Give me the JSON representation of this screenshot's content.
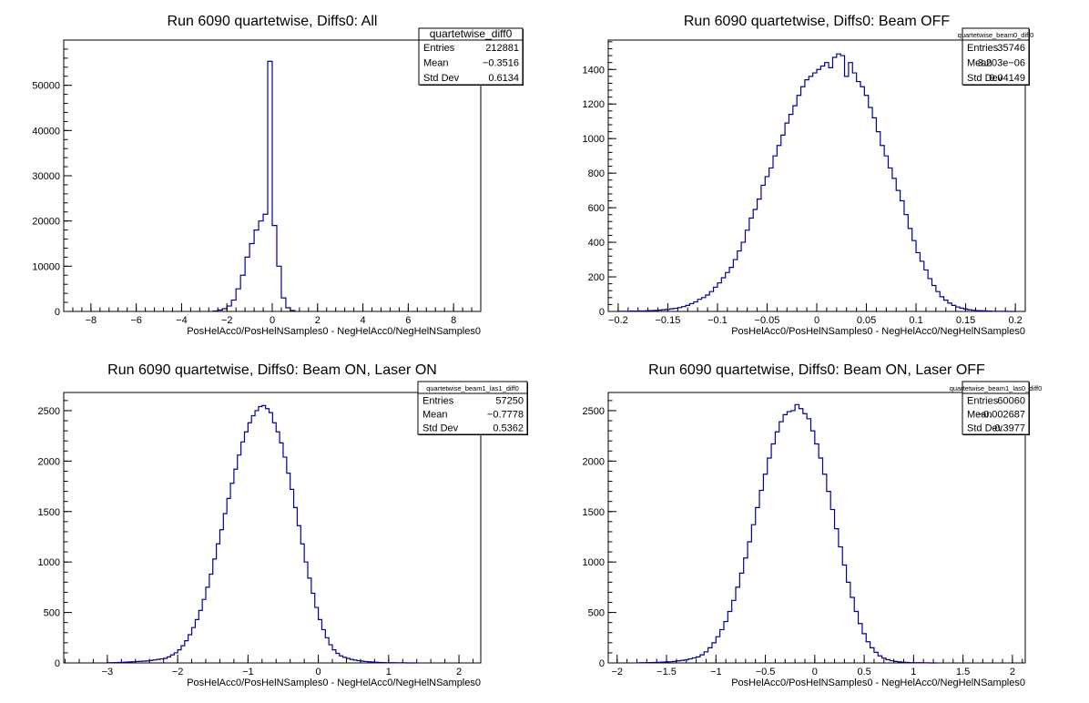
{
  "chart_data": [
    {
      "type": "bar",
      "title": "Run 6090 quartetwise, Diffs0: All",
      "xlabel": "PosHelAcc0/PosHelNSamples0 - NegHelAcc0/NegHelNSamples0",
      "ylabel": "",
      "xlim": [
        -9.2,
        9.2
      ],
      "ylim": [
        0,
        60000
      ],
      "xticks": [
        -8,
        -6,
        -4,
        -2,
        0,
        2,
        4,
        6,
        8
      ],
      "yticks": [
        0,
        10000,
        20000,
        30000,
        40000,
        50000
      ],
      "x_tick_labels": [
        "−8",
        "−6",
        "−4",
        "−2",
        "0",
        "2",
        "4",
        "6",
        "8"
      ],
      "y_tick_labels": [
        "0",
        "10000",
        "20000",
        "30000",
        "40000",
        "50000"
      ],
      "bins": {
        "start": -2.6,
        "width": 0.2
      },
      "values": [
        100,
        300,
        600,
        1200,
        2500,
        5000,
        8000,
        12000,
        15000,
        18000,
        20000,
        21500,
        55300,
        19000,
        10000,
        3000,
        800,
        200
      ],
      "stats": {
        "name": "quartetwise_diff0",
        "rows": [
          {
            "label": "Entries",
            "value": "212881"
          },
          {
            "label": "Mean",
            "value": "−0.3516"
          },
          {
            "label": "Std Dev",
            "value": "0.6134"
          }
        ]
      }
    },
    {
      "type": "bar",
      "title": "Run 6090 quartetwise, Diffs0: Beam OFF",
      "xlabel": "PosHelAcc0/PosHelNSamples0 - NegHelAcc0/NegHelNSamples0",
      "ylabel": "",
      "xlim": [
        -0.21,
        0.21
      ],
      "ylim": [
        0,
        1570
      ],
      "xticks": [
        -0.2,
        -0.15,
        -0.1,
        -0.05,
        0,
        0.05,
        0.1,
        0.15,
        0.2
      ],
      "yticks": [
        0,
        200,
        400,
        600,
        800,
        1000,
        1200,
        1400
      ],
      "x_tick_labels": [
        "−0.2",
        "−0.15",
        "−0.1",
        "−0.05",
        "0",
        "0.05",
        "0.1",
        "0.15",
        "0.2"
      ],
      "y_tick_labels": [
        "0",
        "200",
        "400",
        "600",
        "800",
        "1000",
        "1200",
        "1400"
      ],
      "bins": {
        "start": -0.2,
        "width": 0.004
      },
      "values": [
        1,
        1,
        1,
        2,
        2,
        3,
        3,
        4,
        5,
        6,
        8,
        10,
        12,
        15,
        18,
        22,
        28,
        35,
        45,
        55,
        70,
        80,
        95,
        115,
        140,
        165,
        195,
        225,
        255,
        300,
        350,
        400,
        470,
        540,
        590,
        650,
        730,
        780,
        830,
        900,
        960,
        1020,
        1090,
        1140,
        1190,
        1250,
        1300,
        1340,
        1360,
        1380,
        1400,
        1420,
        1440,
        1410,
        1470,
        1490,
        1480,
        1360,
        1440,
        1380,
        1330,
        1300,
        1250,
        1180,
        1120,
        1040,
        960,
        900,
        830,
        770,
        700,
        640,
        560,
        480,
        410,
        340,
        290,
        240,
        190,
        150,
        115,
        85,
        65,
        48,
        35,
        26,
        19,
        14,
        10,
        7,
        5,
        4,
        3,
        2,
        1,
        1,
        1,
        1,
        0,
        0
      ],
      "stats": {
        "name": "quartetwise_beam0_diff0",
        "rows": [
          {
            "label": "Entries",
            "value": "35746"
          },
          {
            "label": "Mean",
            "value": "3.203e−06"
          },
          {
            "label": "Std Dev",
            "value": "0.04149"
          }
        ]
      }
    },
    {
      "type": "bar",
      "title": "Run 6090 quartetwise, Diffs0: Beam ON, Laser ON",
      "xlabel": "PosHelAcc0/PosHelNSamples0 - NegHelAcc0/NegHelNSamples0",
      "ylabel": "",
      "xlim": [
        -3.62,
        2.31
      ],
      "ylim": [
        0,
        2680
      ],
      "xticks": [
        -3,
        -2,
        -1,
        0,
        1,
        2
      ],
      "yticks": [
        0,
        500,
        1000,
        1500,
        2000,
        2500
      ],
      "x_tick_labels": [
        "−3",
        "−2",
        "−1",
        "0",
        "1",
        "2"
      ],
      "y_tick_labels": [
        "0",
        "500",
        "1000",
        "1500",
        "2000",
        "2500"
      ],
      "bins": {
        "start": -3.0,
        "width": 0.05
      },
      "values": [
        2,
        3,
        4,
        5,
        6,
        8,
        10,
        12,
        14,
        16,
        18,
        20,
        25,
        30,
        35,
        40,
        45,
        60,
        80,
        100,
        130,
        170,
        220,
        280,
        350,
        430,
        520,
        630,
        750,
        880,
        1030,
        1180,
        1320,
        1480,
        1630,
        1780,
        1920,
        2060,
        2190,
        2290,
        2380,
        2450,
        2500,
        2540,
        2550,
        2520,
        2480,
        2380,
        2290,
        2180,
        2040,
        1880,
        1720,
        1540,
        1360,
        1180,
        1000,
        840,
        690,
        550,
        430,
        330,
        250,
        180,
        130,
        95,
        70,
        55,
        45,
        35,
        28,
        22,
        18,
        14,
        11,
        9,
        7,
        5,
        4,
        3,
        2,
        2,
        1,
        1,
        1,
        0,
        0,
        0
      ],
      "stats": {
        "name": "quartetwise_beam1_las1_diff0",
        "rows": [
          {
            "label": "Entries",
            "value": "57250"
          },
          {
            "label": "Mean",
            "value": "−0.7778"
          },
          {
            "label": "Std Dev",
            "value": "0.5362"
          }
        ]
      }
    },
    {
      "type": "bar",
      "title": "Run 6090 quartetwise, Diffs0: Beam ON, Laser OFF",
      "xlabel": "PosHelAcc0/PosHelNSamples0 - NegHelAcc0/NegHelNSamples0",
      "ylabel": "",
      "xlim": [
        -2.09,
        2.13
      ],
      "ylim": [
        0,
        2680
      ],
      "xticks": [
        -2,
        -1.5,
        -1,
        -0.5,
        0,
        0.5,
        1,
        1.5,
        2
      ],
      "yticks": [
        0,
        500,
        1000,
        1500,
        2000,
        2500
      ],
      "x_tick_labels": [
        "−2",
        "−1.5",
        "−1",
        "−0.5",
        "0",
        "0.5",
        "1",
        "1.5",
        "2"
      ],
      "y_tick_labels": [
        "0",
        "500",
        "1000",
        "1500",
        "2000",
        "2500"
      ],
      "bins": {
        "start": -1.8,
        "width": 0.04
      },
      "values": [
        1,
        2,
        3,
        4,
        5,
        6,
        8,
        10,
        12,
        15,
        20,
        25,
        30,
        40,
        50,
        60,
        80,
        110,
        150,
        200,
        260,
        330,
        410,
        510,
        620,
        750,
        890,
        1040,
        1200,
        1370,
        1540,
        1710,
        1870,
        2030,
        2170,
        2290,
        2390,
        2460,
        2490,
        2500,
        2560,
        2520,
        2470,
        2420,
        2300,
        2170,
        2030,
        1870,
        1700,
        1520,
        1330,
        1150,
        970,
        800,
        650,
        510,
        390,
        290,
        210,
        150,
        105,
        70,
        48,
        33,
        22,
        15,
        10,
        7,
        5,
        3,
        2,
        2,
        1,
        1,
        0,
        0
      ],
      "stats": {
        "name": "quartetwise_beam1_las0_diff0",
        "rows": [
          {
            "label": "Entries",
            "value": "60060"
          },
          {
            "label": "Mean",
            "value": "−0.002687"
          },
          {
            "label": "Std Dev",
            "value": "0.3977"
          }
        ]
      }
    }
  ]
}
